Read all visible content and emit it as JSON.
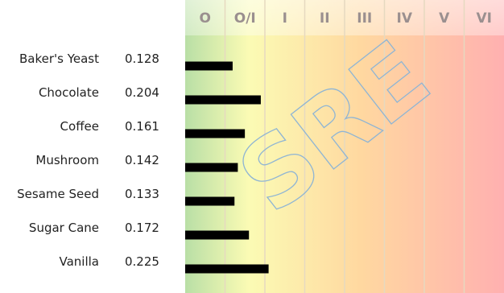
{
  "colors": {
    "bar": "#000000",
    "zone_gradient": [
      "#b9dfa6",
      "#fbfbb4",
      "#ffd8a0",
      "#ffb0b0"
    ],
    "zone_divider": "#e6d9c0",
    "zone_label": "#9a8f8f",
    "watermark": "#8fb5d4"
  },
  "watermark": "SRE",
  "chart_data": {
    "type": "bar",
    "orientation": "horizontal",
    "categories": [
      "Baker's Yeast",
      "Chocolate",
      "Coffee",
      "Mushroom",
      "Sesame Seed",
      "Sugar Cane",
      "Vanilla"
    ],
    "values": [
      0.128,
      0.204,
      0.161,
      0.142,
      0.133,
      0.172,
      0.225
    ],
    "value_labels": [
      "0.128",
      "0.204",
      "0.161",
      "0.142",
      "0.133",
      "0.172",
      "0.225"
    ],
    "xlim": [
      0,
      0.86
    ],
    "zones": [
      "O",
      "O/I",
      "I",
      "II",
      "III",
      "IV",
      "V",
      "VI"
    ],
    "title": "",
    "xlabel": "",
    "ylabel": "",
    "grid": true,
    "legend": "none"
  }
}
